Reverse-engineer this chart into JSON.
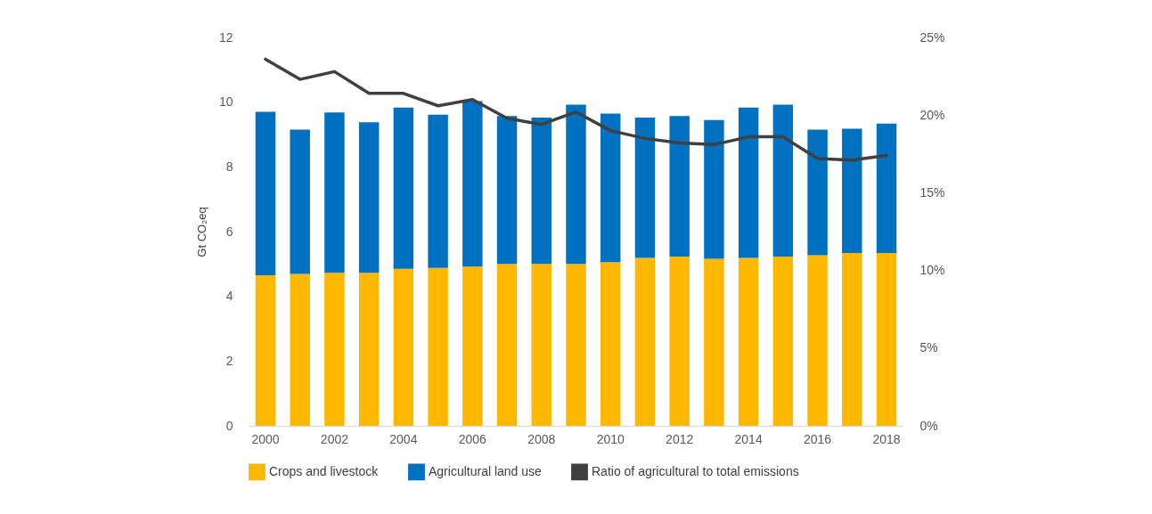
{
  "chart_data": {
    "type": "bar",
    "stacked": true,
    "ylabel": "Gt CO₂eq",
    "categories": [
      "2000",
      null,
      "2002",
      null,
      "2004",
      null,
      "2006",
      null,
      "2008",
      null,
      "2010",
      null,
      "2012",
      null,
      "2014",
      null,
      "2016",
      null,
      "2018"
    ],
    "series": [
      {
        "name": "Crops and livestock",
        "color": "#ffb800",
        "values": [
          4.65,
          4.69,
          4.73,
          4.73,
          4.85,
          4.88,
          4.92,
          5.0,
          5.0,
          5.0,
          5.06,
          5.19,
          5.23,
          5.16,
          5.19,
          5.23,
          5.27,
          5.34,
          5.34
        ]
      },
      {
        "name": "Agricultural land use",
        "color": "#0070c0",
        "values": [
          5.05,
          4.46,
          4.95,
          4.65,
          4.98,
          4.73,
          5.11,
          4.57,
          4.52,
          4.92,
          4.59,
          4.33,
          4.34,
          4.29,
          4.64,
          4.69,
          3.88,
          3.84,
          4.0
        ]
      },
      {
        "name": "Ratio of agricultural to total emissions",
        "type": "line",
        "axis": "y2",
        "color": "#404040",
        "values": [
          23.6,
          22.3,
          22.8,
          21.4,
          21.4,
          20.6,
          21.0,
          19.8,
          19.4,
          20.2,
          19.0,
          18.5,
          18.2,
          18.1,
          18.6,
          18.6,
          17.2,
          17.1,
          17.4
        ]
      }
    ],
    "ylim": [
      0,
      12
    ],
    "yticks": [
      0,
      2,
      4,
      6,
      8,
      10,
      12
    ],
    "y2lim": [
      0,
      25
    ],
    "y2ticks": [
      {
        "value": 0,
        "label": "0%"
      },
      {
        "value": 5,
        "label": "5%"
      },
      {
        "value": 10,
        "label": "10%"
      },
      {
        "value": 15,
        "label": "15%"
      },
      {
        "value": 20,
        "label": "20%"
      },
      {
        "value": 25,
        "label": "25%"
      }
    ],
    "grid": false,
    "legend": "bottom",
    "marker": "none",
    "line_style": "solid"
  }
}
